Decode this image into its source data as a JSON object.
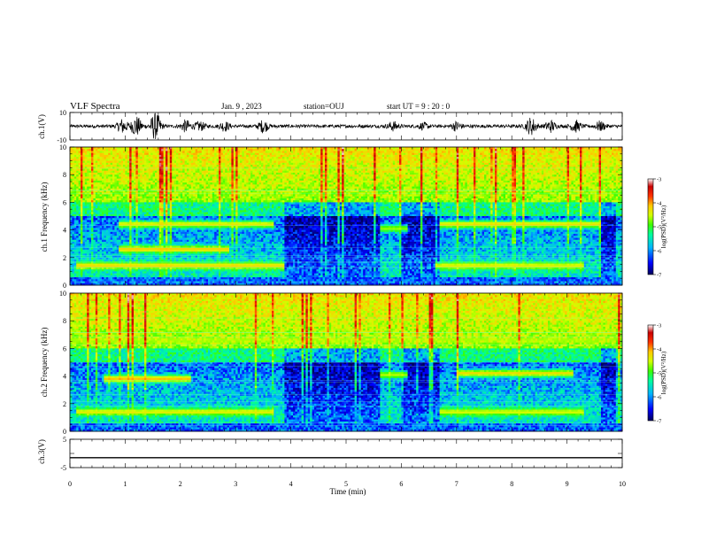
{
  "header": {
    "title": "VLF Spectra",
    "date": "Jan. 9 , 2023",
    "station": "station=OUJ",
    "start": "start UT = 9 : 20 : 0"
  },
  "colorbar": {
    "label": "log(PSD)(V²/Hz)",
    "ticks": [
      "-3",
      "-4",
      "-5",
      "-6",
      "-7"
    ],
    "range": [
      -7,
      -3
    ],
    "colors": [
      "#00005a",
      "#0000ff",
      "#00b4ff",
      "#00ff9a",
      "#3cff00",
      "#d2ff00",
      "#ffc800",
      "#ff3200",
      "#c80000",
      "#ffffff"
    ]
  },
  "chart_data": [
    {
      "type": "line",
      "ylabel": "ch.1(V)",
      "ylim": [
        -10,
        10
      ],
      "ytick_labels": [
        "10",
        "-10"
      ],
      "xlim": [
        0,
        10
      ],
      "bursts": [
        {
          "x": 1.55,
          "amp": 10
        },
        {
          "x": 1.2,
          "amp": 7
        },
        {
          "x": 0.95,
          "amp": 5
        },
        {
          "x": 2.1,
          "amp": 4
        },
        {
          "x": 2.35,
          "amp": 3
        },
        {
          "x": 2.8,
          "amp": 3
        },
        {
          "x": 3.5,
          "amp": 4
        },
        {
          "x": 5.85,
          "amp": 3
        },
        {
          "x": 6.4,
          "amp": 2
        },
        {
          "x": 7.0,
          "amp": 3
        },
        {
          "x": 8.35,
          "amp": 6
        },
        {
          "x": 8.7,
          "amp": 4
        },
        {
          "x": 9.15,
          "amp": 4
        },
        {
          "x": 9.6,
          "amp": 3
        }
      ]
    },
    {
      "type": "heatmap",
      "ylabel": "ch.1 Frequency (kHz)",
      "ylim": [
        0,
        10
      ],
      "ytick_labels": [
        "0",
        "2",
        "4",
        "6",
        "8",
        "10"
      ],
      "xlim": [
        0,
        10
      ],
      "zlim": [
        -7,
        -3
      ],
      "bands": [
        {
          "f": 1.4,
          "t0": 0.1,
          "t1": 3.9,
          "level": -4.3
        },
        {
          "f": 1.4,
          "t0": 6.6,
          "t1": 9.3,
          "level": -4.5
        },
        {
          "f": 2.6,
          "t0": 0.9,
          "t1": 2.9,
          "level": -4.2
        },
        {
          "f": 4.4,
          "t0": 0.9,
          "t1": 3.7,
          "level": -4.4
        },
        {
          "f": 4.4,
          "t0": 6.7,
          "t1": 9.6,
          "level": -4.3
        },
        {
          "f": 4.1,
          "t0": 5.6,
          "t1": 6.1,
          "level": -4.8
        }
      ]
    },
    {
      "type": "heatmap",
      "ylabel": "ch.2 Frequency (kHz)",
      "ylim": [
        0,
        10
      ],
      "ytick_labels": [
        "0",
        "2",
        "4",
        "6",
        "8",
        "10"
      ],
      "xlim": [
        0,
        10
      ],
      "zlim": [
        -7,
        -3
      ],
      "bands": [
        {
          "f": 6.6,
          "t0": 0.0,
          "t1": 9.9,
          "level": -4.9
        },
        {
          "f": 1.4,
          "t0": 0.1,
          "t1": 3.7,
          "level": -4.5
        },
        {
          "f": 1.4,
          "t0": 6.7,
          "t1": 9.3,
          "level": -4.6
        },
        {
          "f": 3.8,
          "t0": 0.6,
          "t1": 2.2,
          "level": -4.1
        },
        {
          "f": 4.1,
          "t0": 5.6,
          "t1": 6.1,
          "level": -4.7
        },
        {
          "f": 4.2,
          "t0": 7.0,
          "t1": 9.1,
          "level": -4.3
        }
      ]
    },
    {
      "type": "line",
      "ylabel": "ch.3(V)",
      "ylim": [
        -5,
        5
      ],
      "ytick_labels": [
        "5",
        "-5"
      ],
      "xlim": [
        0,
        10
      ],
      "value": -1.5
    }
  ],
  "xaxis": {
    "label": "Time (min)",
    "ticks": [
      "0",
      "1",
      "2",
      "3",
      "4",
      "5",
      "6",
      "7",
      "8",
      "9",
      "10"
    ]
  }
}
